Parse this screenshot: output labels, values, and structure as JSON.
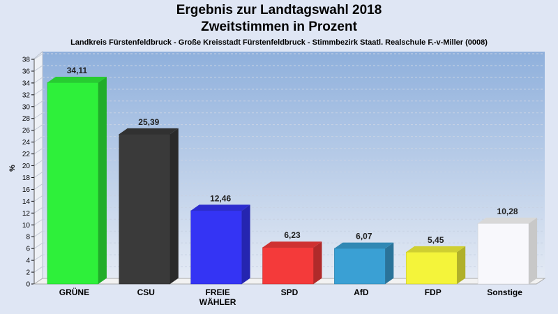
{
  "chart_data": {
    "type": "bar",
    "title": "Ergebnis zur Landtagswahl 2018",
    "subtitle_line": "Zweitstimmen in Prozent",
    "subtitle": "Landkreis Fürstenfeldbruck - Große Kreisstadt Fürstenfeldbruck - Stimmbezirk Staatl. Realschule F.-v-Miller (0008)",
    "ylabel": "%",
    "ylim": [
      0,
      38
    ],
    "yticks": [
      0,
      2,
      4,
      6,
      8,
      10,
      12,
      14,
      16,
      18,
      20,
      22,
      24,
      26,
      28,
      30,
      32,
      34,
      36,
      38
    ],
    "categories": [
      [
        "GRÜNE"
      ],
      [
        "CSU"
      ],
      [
        "FREIE",
        "WÄHLER"
      ],
      [
        "SPD"
      ],
      [
        "AfD"
      ],
      [
        "FDP"
      ],
      [
        "Sonstige"
      ]
    ],
    "values": [
      34.11,
      25.39,
      12.46,
      6.23,
      6.07,
      5.45,
      10.28
    ],
    "value_labels": [
      "34,11",
      "25,39",
      "12,46",
      "6,23",
      "6,07",
      "5,45",
      "10,28"
    ],
    "colors": [
      "#2ef03a",
      "#3a3a3a",
      "#3434f4",
      "#f43a3a",
      "#3aa0d4",
      "#f4f43a",
      "#ffffff"
    ],
    "grid": true
  }
}
